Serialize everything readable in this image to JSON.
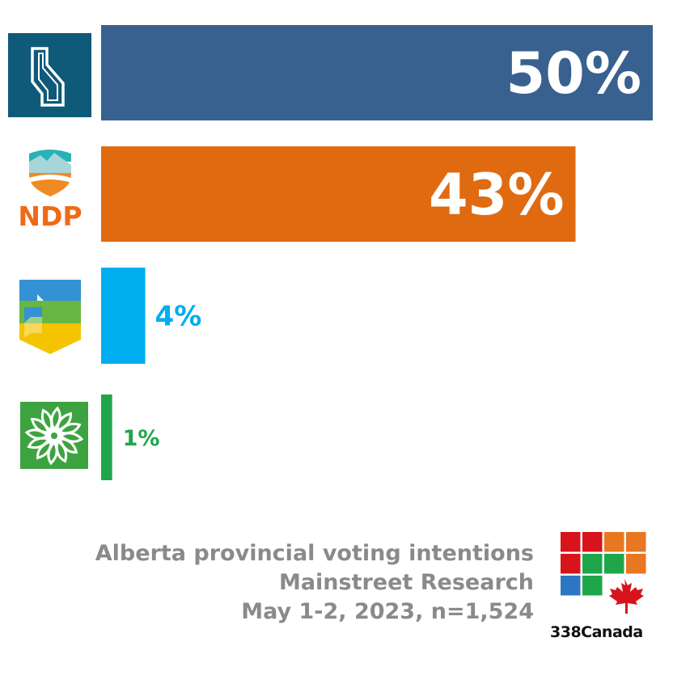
{
  "chart_data": {
    "type": "bar",
    "orientation": "horizontal",
    "categories": [
      "UCP",
      "NDP",
      "Alberta Party",
      "Green Party"
    ],
    "values": [
      50,
      43,
      4,
      1
    ],
    "value_labels": [
      "50%",
      "43%",
      "4%",
      "1%"
    ],
    "colors": [
      "#396190",
      "#E06A10",
      "#00ADEF",
      "#1FA64A"
    ],
    "xlim": [
      0,
      50
    ]
  },
  "logos": {
    "ndp_text": "NDP"
  },
  "caption": {
    "line1": "Alberta provincial voting intentions",
    "line2": "Mainstreet Research",
    "line3": "May 1-2, 2023, n=1,524"
  },
  "brand": {
    "name": "338Canada",
    "tile_colors": [
      "#D7141B",
      "#D7141B",
      "#E87722",
      "#E87722",
      "#D7141B",
      "#1FA64A",
      "#1FA64A",
      "#E87722",
      "#2E76C4",
      "#1FA64A",
      "#2E76C4",
      "#2E76C4"
    ],
    "leaf_color": "#D7141B"
  }
}
